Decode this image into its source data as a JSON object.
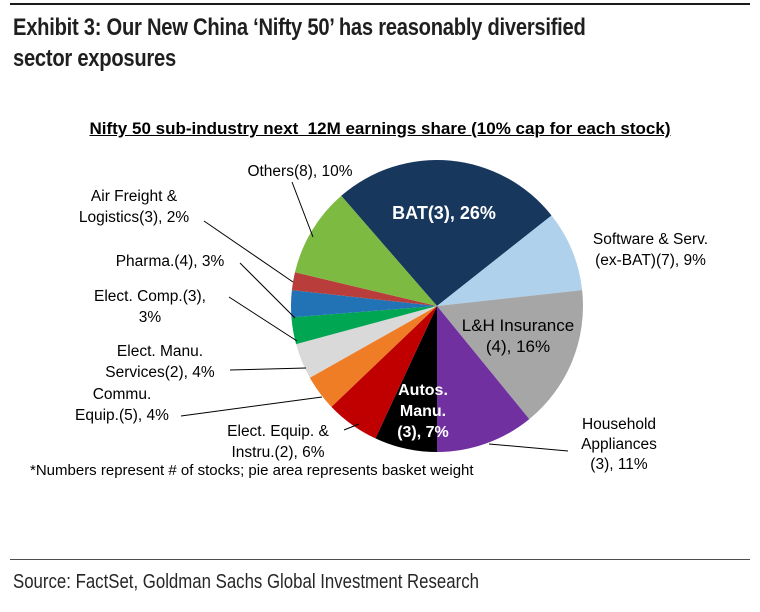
{
  "header": {
    "title_line1": "Exhibit 3: Our New China ‘Nifty 50’ has reasonably diversified",
    "title_line2": "sector exposures"
  },
  "chart": {
    "title": "Nifty 50 sub-industry next  12M earnings share (10% cap for each stock)"
  },
  "chart_data": {
    "type": "pie",
    "title": "Nifty 50 sub-industry next 12M earnings share (10% cap for each stock)",
    "unit": "% of next 12M earnings share",
    "start_angle_deg": -41,
    "clockwise": true,
    "legend_position": "labels-around-pie",
    "slices": [
      {
        "label": "BAT",
        "stocks": 3,
        "value": 26,
        "color": "#17375D",
        "display": "BAT(3), 26%"
      },
      {
        "label": "Software & Serv. (ex-BAT)",
        "stocks": 7,
        "value": 9,
        "color": "#AFD1EC",
        "display": "Software & Serv.\n(ex-BAT)(7), 9%"
      },
      {
        "label": "L&H Insurance",
        "stocks": 4,
        "value": 16,
        "color": "#A6A6A6",
        "display": "L&H Insurance\n(4), 16%"
      },
      {
        "label": "Household Appliances",
        "stocks": 3,
        "value": 11,
        "color": "#7030A0",
        "display": "Household\nAppliances\n(3), 11%"
      },
      {
        "label": "Autos. Manu.",
        "stocks": 3,
        "value": 7,
        "color": "#000000",
        "display": "Autos.\nManu.\n(3), 7%"
      },
      {
        "label": "Elect. Equip. & Instru.",
        "stocks": 2,
        "value": 6,
        "color": "#C00000",
        "display": "Elect. Equip. &\nInstru.(2), 6%"
      },
      {
        "label": "Commu. Equip.",
        "stocks": 5,
        "value": 4,
        "color": "#EF7D25",
        "display": "Commu.\nEquip.(5), 4%"
      },
      {
        "label": "Elect. Manu. Services",
        "stocks": 2,
        "value": 4,
        "color": "#D9D9D9",
        "display": "Elect. Manu.\nServices(2), 4%"
      },
      {
        "label": "Elect. Comp.",
        "stocks": 3,
        "value": 3,
        "color": "#00A651",
        "display": "Elect. Comp.(3),\n3%"
      },
      {
        "label": "Pharma.",
        "stocks": 4,
        "value": 3,
        "color": "#2273B5",
        "display": "Pharma.(4), 3%"
      },
      {
        "label": "Air Freight & Logistics",
        "stocks": 3,
        "value": 2,
        "color": "#B93D3B",
        "display": "Air Freight &\nLogistics(3), 2%"
      },
      {
        "label": "Others",
        "stocks": 8,
        "value": 10,
        "color": "#7CBA42",
        "display": "Others(8), 10%"
      }
    ]
  },
  "footnote": "*Numbers represent # of stocks; pie area represents basket weight",
  "source": "Source: FactSet, Goldman Sachs Global Investment Research"
}
